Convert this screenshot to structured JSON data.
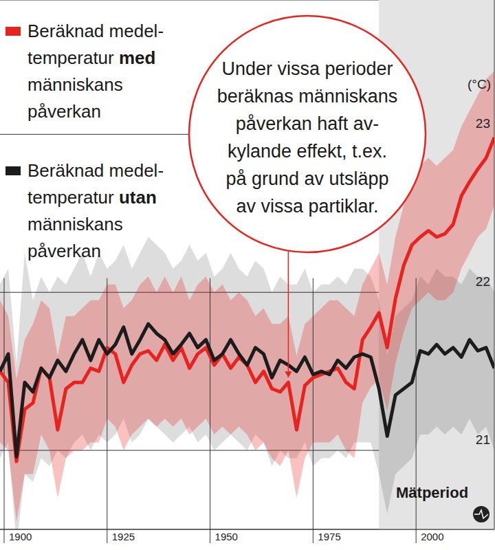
{
  "chart_data": {
    "type": "line",
    "unit": "(°C)",
    "legend": "top-left",
    "grid": true,
    "x": [
      1899,
      1901,
      1903,
      1905,
      1907,
      1909,
      1911,
      1913,
      1915,
      1917,
      1919,
      1921,
      1923,
      1925,
      1927,
      1929,
      1931,
      1933,
      1935,
      1937,
      1939,
      1941,
      1943,
      1945,
      1947,
      1949,
      1951,
      1953,
      1955,
      1957,
      1959,
      1961,
      1963,
      1965,
      1967,
      1969,
      1971,
      1973,
      1975,
      1977,
      1979,
      1981,
      1983,
      1985,
      1987,
      1989,
      1991,
      1993,
      1995,
      1997,
      1999,
      2001,
      2003,
      2005,
      2007,
      2009,
      2011,
      2013,
      2015,
      2017,
      2019
    ],
    "xlim": [
      1899,
      2019
    ],
    "xticks": [
      1900,
      1925,
      1950,
      1975,
      2000
    ],
    "ylim": [
      20.5,
      23.85
    ],
    "yticks": [
      21,
      22,
      23
    ],
    "series": [
      {
        "name": "Beräknad medel­temperatur med människans påverkan",
        "color": "#e8231f",
        "values": [
          21.5,
          21.43,
          20.93,
          21.26,
          21.3,
          21.52,
          21.46,
          21.13,
          21.39,
          21.43,
          21.43,
          21.52,
          21.5,
          21.65,
          21.61,
          21.43,
          21.54,
          21.61,
          21.63,
          21.57,
          21.67,
          21.57,
          21.65,
          21.52,
          21.61,
          21.65,
          21.54,
          21.61,
          21.52,
          21.59,
          21.54,
          21.43,
          21.5,
          21.39,
          21.37,
          21.43,
          21.13,
          21.41,
          21.46,
          21.48,
          21.5,
          21.52,
          21.43,
          21.39,
          21.7,
          21.78,
          21.87,
          21.65,
          21.96,
          22.17,
          22.3,
          22.35,
          22.39,
          22.35,
          22.37,
          22.43,
          22.61,
          22.7,
          22.78,
          22.85,
          22.98
        ],
        "lower": [
          21.05,
          21.0,
          20.55,
          20.85,
          20.85,
          21.1,
          21.0,
          20.7,
          20.95,
          21.0,
          21.0,
          21.05,
          21.05,
          21.2,
          21.15,
          21.0,
          21.1,
          21.15,
          21.2,
          21.15,
          21.2,
          21.15,
          21.2,
          21.1,
          21.15,
          21.2,
          21.1,
          21.15,
          21.1,
          21.15,
          21.1,
          21.0,
          21.05,
          20.95,
          20.9,
          21.0,
          20.7,
          20.95,
          21.05,
          21.05,
          21.05,
          21.1,
          21.0,
          20.95,
          21.3,
          21.4,
          21.45,
          21.25,
          21.55,
          21.75,
          21.9,
          21.95,
          22.0,
          21.95,
          21.95,
          22.0,
          22.15,
          22.25,
          22.35,
          22.4,
          22.55
        ],
        "upper": [
          21.95,
          21.85,
          21.45,
          21.7,
          21.8,
          21.95,
          21.9,
          21.6,
          21.85,
          21.85,
          21.9,
          21.95,
          21.95,
          22.05,
          22.05,
          21.9,
          21.95,
          22.05,
          22.1,
          22.0,
          22.1,
          22.0,
          22.1,
          21.95,
          22.05,
          22.1,
          22.0,
          22.05,
          21.95,
          22.0,
          21.95,
          21.85,
          21.9,
          21.8,
          21.8,
          21.85,
          21.6,
          21.8,
          21.85,
          21.9,
          21.95,
          21.95,
          21.9,
          21.85,
          22.05,
          22.15,
          22.25,
          22.05,
          22.35,
          22.55,
          22.7,
          22.8,
          22.85,
          22.8,
          22.85,
          22.9,
          23.05,
          23.15,
          23.25,
          23.35,
          23.4
        ]
      },
      {
        "name": "Beräknad medel­temperatur utan människans påverkan",
        "color": "#1c1c1c",
        "values": [
          21.5,
          21.61,
          20.96,
          21.43,
          21.37,
          21.52,
          21.46,
          21.57,
          21.5,
          21.61,
          21.7,
          21.57,
          21.7,
          21.61,
          21.67,
          21.78,
          21.61,
          21.7,
          21.8,
          21.74,
          21.7,
          21.61,
          21.67,
          21.74,
          21.65,
          21.7,
          21.57,
          21.61,
          21.7,
          21.61,
          21.54,
          21.65,
          21.61,
          21.46,
          21.57,
          21.54,
          21.5,
          21.59,
          21.48,
          21.5,
          21.48,
          21.57,
          21.52,
          21.59,
          21.61,
          21.59,
          21.39,
          21.09,
          21.35,
          21.39,
          21.43,
          21.63,
          21.61,
          21.67,
          21.61,
          21.65,
          21.59,
          21.7,
          21.63,
          21.65,
          21.52
        ],
        "lower": [
          20.95,
          21.05,
          20.4,
          20.85,
          20.8,
          20.95,
          20.9,
          21.0,
          20.95,
          21.05,
          21.1,
          21.0,
          21.1,
          21.05,
          21.1,
          21.2,
          21.05,
          21.1,
          21.2,
          21.15,
          21.1,
          21.05,
          21.1,
          21.15,
          21.05,
          21.1,
          21.0,
          21.05,
          21.1,
          21.05,
          21.0,
          21.1,
          21.05,
          20.9,
          21.0,
          20.95,
          20.95,
          21.05,
          20.9,
          20.95,
          20.95,
          21.0,
          20.95,
          21.05,
          21.05,
          21.05,
          20.85,
          20.6,
          20.85,
          20.9,
          20.95,
          21.1,
          21.1,
          21.15,
          21.1,
          21.15,
          21.1,
          21.2,
          21.1,
          21.15,
          21.0
        ],
        "upper": [
          22.05,
          22.15,
          21.55,
          22.25,
          21.95,
          22.1,
          22.0,
          22.1,
          22.05,
          22.15,
          22.25,
          22.1,
          22.25,
          22.15,
          22.2,
          22.3,
          22.15,
          22.25,
          22.35,
          22.3,
          22.25,
          22.15,
          22.2,
          22.3,
          22.2,
          22.25,
          22.1,
          22.15,
          22.25,
          22.15,
          22.1,
          22.2,
          22.15,
          22.0,
          22.1,
          22.05,
          22.05,
          22.15,
          22.0,
          22.05,
          22.05,
          22.1,
          22.05,
          22.15,
          22.15,
          22.1,
          21.95,
          21.6,
          21.85,
          21.9,
          21.95,
          22.1,
          22.05,
          22.15,
          22.1,
          22.1,
          22.05,
          22.15,
          22.1,
          22.1,
          22.0
        ]
      }
    ],
    "shaded_period": {
      "start": 1991,
      "label": "Mätperiod"
    },
    "annotation": {
      "lines": [
        "Under vissa perioder",
        "beräknas människans",
        "påverkan haft av-",
        "kylande effekt, t.ex.",
        "på grund av utsläpp",
        "av vissa partiklar."
      ],
      "x": 1969,
      "y": 21.43
    }
  }
}
